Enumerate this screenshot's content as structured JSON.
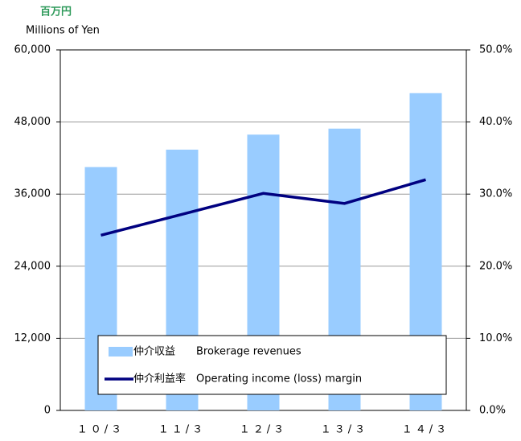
{
  "chart_data": {
    "type": "bar_line",
    "y_unit_ja": "百万円",
    "y_label": "Millions of Yen",
    "categories": [
      "１０/３",
      "１１/３",
      "１２/３",
      "１３/３",
      "１４/３"
    ],
    "series": [
      {
        "name": "仲介収益　　Brokerage revenues",
        "color": "#99ccff",
        "type": "bar",
        "values": [
          40500,
          43400,
          45900,
          46900,
          52800
        ]
      },
      {
        "name": "仲介利益率　Operating income (loss) margin",
        "color": "#000080",
        "type": "line",
        "axis": "y2",
        "values": [
          24.3,
          27.2,
          30.1,
          28.7,
          32.0
        ]
      }
    ],
    "ylim": [
      0,
      60000
    ],
    "yticks": [
      0,
      {
        "value": 12000,
        "label": "12,000"
      },
      {
        "value": 24000,
        "label": "24,000"
      },
      {
        "value": 36000,
        "label": "36,000"
      },
      {
        "value": 48000,
        "label": "48,000"
      },
      {
        "value": 60000,
        "label": "60,000"
      }
    ],
    "y2lim": [
      0,
      50
    ],
    "y2ticks": [
      {
        "value": 0,
        "label": "0.0%"
      },
      {
        "value": 10,
        "label": "10.0%"
      },
      {
        "value": 20,
        "label": "20.0%"
      },
      {
        "value": 30,
        "label": "30.0%"
      },
      {
        "value": 40,
        "label": "40.0%"
      },
      {
        "value": 50,
        "label": "50.0%"
      }
    ],
    "grid": true
  }
}
